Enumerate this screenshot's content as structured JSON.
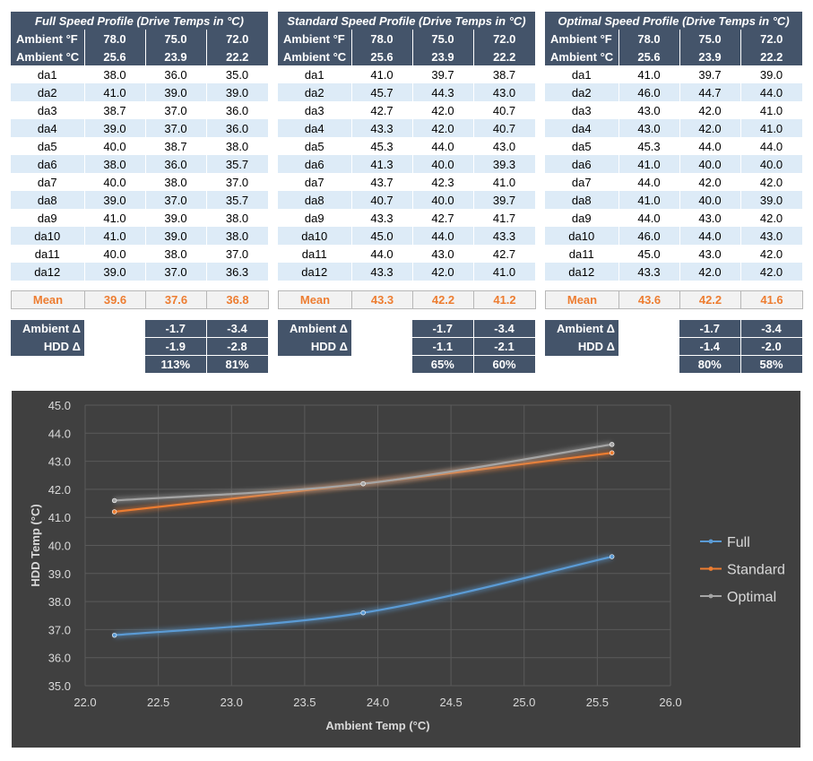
{
  "profiles": [
    {
      "title": "Full Speed Profile (Drive Temps in °C)",
      "ambient_f_label": "Ambient °F",
      "ambient_c_label": "Ambient °C",
      "ambient_f": [
        "78.0",
        "75.0",
        "72.0"
      ],
      "ambient_c": [
        "25.6",
        "23.9",
        "22.2"
      ],
      "drives": [
        {
          "name": "da1",
          "vals": [
            "38.0",
            "36.0",
            "35.0"
          ]
        },
        {
          "name": "da2",
          "vals": [
            "41.0",
            "39.0",
            "39.0"
          ]
        },
        {
          "name": "da3",
          "vals": [
            "38.7",
            "37.0",
            "36.0"
          ]
        },
        {
          "name": "da4",
          "vals": [
            "39.0",
            "37.0",
            "36.0"
          ]
        },
        {
          "name": "da5",
          "vals": [
            "40.0",
            "38.7",
            "38.0"
          ]
        },
        {
          "name": "da6",
          "vals": [
            "38.0",
            "36.0",
            "35.7"
          ]
        },
        {
          "name": "da7",
          "vals": [
            "40.0",
            "38.0",
            "37.0"
          ]
        },
        {
          "name": "da8",
          "vals": [
            "39.0",
            "37.0",
            "35.7"
          ]
        },
        {
          "name": "da9",
          "vals": [
            "41.0",
            "39.0",
            "38.0"
          ]
        },
        {
          "name": "da10",
          "vals": [
            "41.0",
            "39.0",
            "38.0"
          ]
        },
        {
          "name": "da11",
          "vals": [
            "40.0",
            "38.0",
            "37.0"
          ]
        },
        {
          "name": "da12",
          "vals": [
            "39.0",
            "37.0",
            "36.3"
          ]
        }
      ],
      "mean_label": "Mean",
      "mean": [
        "39.6",
        "37.6",
        "36.8"
      ],
      "ambient_delta_label": "Ambient Δ",
      "hdd_delta_label": "HDD Δ",
      "ambient_delta": [
        "-1.7",
        "-3.4"
      ],
      "hdd_delta": [
        "-1.9",
        "-2.8"
      ],
      "ratio": [
        "113%",
        "81%"
      ]
    },
    {
      "title": "Standard Speed Profile (Drive Temps in °C)",
      "ambient_f_label": "Ambient °F",
      "ambient_c_label": "Ambient °C",
      "ambient_f": [
        "78.0",
        "75.0",
        "72.0"
      ],
      "ambient_c": [
        "25.6",
        "23.9",
        "22.2"
      ],
      "drives": [
        {
          "name": "da1",
          "vals": [
            "41.0",
            "39.7",
            "38.7"
          ]
        },
        {
          "name": "da2",
          "vals": [
            "45.7",
            "44.3",
            "43.0"
          ]
        },
        {
          "name": "da3",
          "vals": [
            "42.7",
            "42.0",
            "40.7"
          ]
        },
        {
          "name": "da4",
          "vals": [
            "43.3",
            "42.0",
            "40.7"
          ]
        },
        {
          "name": "da5",
          "vals": [
            "45.3",
            "44.0",
            "43.0"
          ]
        },
        {
          "name": "da6",
          "vals": [
            "41.3",
            "40.0",
            "39.3"
          ]
        },
        {
          "name": "da7",
          "vals": [
            "43.7",
            "42.3",
            "41.0"
          ]
        },
        {
          "name": "da8",
          "vals": [
            "40.7",
            "40.0",
            "39.7"
          ]
        },
        {
          "name": "da9",
          "vals": [
            "43.3",
            "42.7",
            "41.7"
          ]
        },
        {
          "name": "da10",
          "vals": [
            "45.0",
            "44.0",
            "43.3"
          ]
        },
        {
          "name": "da11",
          "vals": [
            "44.0",
            "43.0",
            "42.7"
          ]
        },
        {
          "name": "da12",
          "vals": [
            "43.3",
            "42.0",
            "41.0"
          ]
        }
      ],
      "mean_label": "Mean",
      "mean": [
        "43.3",
        "42.2",
        "41.2"
      ],
      "ambient_delta_label": "Ambient Δ",
      "hdd_delta_label": "HDD Δ",
      "ambient_delta": [
        "-1.7",
        "-3.4"
      ],
      "hdd_delta": [
        "-1.1",
        "-2.1"
      ],
      "ratio": [
        "65%",
        "60%"
      ]
    },
    {
      "title": "Optimal Speed Profile (Drive Temps in °C)",
      "ambient_f_label": "Ambient °F",
      "ambient_c_label": "Ambient °C",
      "ambient_f": [
        "78.0",
        "75.0",
        "72.0"
      ],
      "ambient_c": [
        "25.6",
        "23.9",
        "22.2"
      ],
      "drives": [
        {
          "name": "da1",
          "vals": [
            "41.0",
            "39.7",
            "39.0"
          ]
        },
        {
          "name": "da2",
          "vals": [
            "46.0",
            "44.7",
            "44.0"
          ]
        },
        {
          "name": "da3",
          "vals": [
            "43.0",
            "42.0",
            "41.0"
          ]
        },
        {
          "name": "da4",
          "vals": [
            "43.0",
            "42.0",
            "41.0"
          ]
        },
        {
          "name": "da5",
          "vals": [
            "45.3",
            "44.0",
            "44.0"
          ]
        },
        {
          "name": "da6",
          "vals": [
            "41.0",
            "40.0",
            "40.0"
          ]
        },
        {
          "name": "da7",
          "vals": [
            "44.0",
            "42.0",
            "42.0"
          ]
        },
        {
          "name": "da8",
          "vals": [
            "41.0",
            "40.0",
            "39.0"
          ]
        },
        {
          "name": "da9",
          "vals": [
            "44.0",
            "43.0",
            "42.0"
          ]
        },
        {
          "name": "da10",
          "vals": [
            "46.0",
            "44.0",
            "43.0"
          ]
        },
        {
          "name": "da11",
          "vals": [
            "45.0",
            "43.0",
            "42.0"
          ]
        },
        {
          "name": "da12",
          "vals": [
            "43.3",
            "42.0",
            "42.0"
          ]
        }
      ],
      "mean_label": "Mean",
      "mean": [
        "43.6",
        "42.2",
        "41.6"
      ],
      "ambient_delta_label": "Ambient Δ",
      "hdd_delta_label": "HDD Δ",
      "ambient_delta": [
        "-1.7",
        "-3.4"
      ],
      "hdd_delta": [
        "-1.4",
        "-2.0"
      ],
      "ratio": [
        "80%",
        "58%"
      ]
    }
  ],
  "chart_data": {
    "type": "line",
    "title": "",
    "xlabel": "Ambient Temp (°C)",
    "ylabel": "HDD Temp (°C)",
    "xlim": [
      22.0,
      26.0
    ],
    "ylim": [
      35.0,
      45.0
    ],
    "xticks": [
      "22.0",
      "22.5",
      "23.0",
      "23.5",
      "24.0",
      "24.5",
      "25.0",
      "25.5",
      "26.0"
    ],
    "yticks": [
      "35.0",
      "36.0",
      "37.0",
      "38.0",
      "39.0",
      "40.0",
      "41.0",
      "42.0",
      "43.0",
      "44.0",
      "45.0"
    ],
    "grid": true,
    "legend_position": "right",
    "series": [
      {
        "name": "Full",
        "color": "#5b9bd5",
        "points": [
          [
            22.2,
            36.8
          ],
          [
            23.9,
            37.6
          ],
          [
            25.6,
            39.6
          ]
        ]
      },
      {
        "name": "Standard",
        "color": "#ed7d31",
        "points": [
          [
            22.2,
            41.2
          ],
          [
            23.9,
            42.2
          ],
          [
            25.6,
            43.3
          ]
        ]
      },
      {
        "name": "Optimal",
        "color": "#a5a5a5",
        "points": [
          [
            22.2,
            41.6
          ],
          [
            23.9,
            42.2
          ],
          [
            25.6,
            43.6
          ]
        ]
      }
    ]
  },
  "colors": {
    "header_bg": "#44546a",
    "band_bg": "#ddebf7",
    "mean_text": "#ed7d31",
    "chart_bg": "#404040",
    "grid": "#5a5a5a",
    "axis_text": "#d9d9d9"
  }
}
